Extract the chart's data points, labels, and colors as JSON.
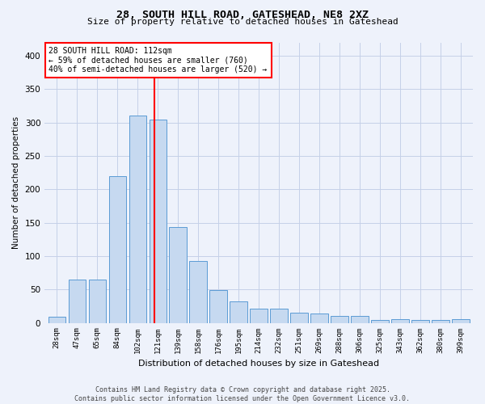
{
  "title_line1": "28, SOUTH HILL ROAD, GATESHEAD, NE8 2XZ",
  "title_line2": "Size of property relative to detached houses in Gateshead",
  "xlabel": "Distribution of detached houses by size in Gateshead",
  "ylabel": "Number of detached properties",
  "bar_values": [
    9,
    65,
    65,
    220,
    310,
    305,
    144,
    93,
    49,
    32,
    21,
    21,
    15,
    14,
    10,
    10,
    4,
    5,
    4,
    4,
    5
  ],
  "bin_labels": [
    "28sqm",
    "47sqm",
    "65sqm",
    "84sqm",
    "102sqm",
    "121sqm",
    "139sqm",
    "158sqm",
    "176sqm",
    "195sqm",
    "214sqm",
    "232sqm",
    "251sqm",
    "269sqm",
    "288sqm",
    "306sqm",
    "325sqm",
    "343sqm",
    "362sqm",
    "380sqm",
    "399sqm"
  ],
  "bar_color": "#c6d9f0",
  "bar_edge_color": "#5b9bd5",
  "ref_line_color": "red",
  "annotation_text": "28 SOUTH HILL ROAD: 112sqm\n← 59% of detached houses are smaller (760)\n40% of semi-detached houses are larger (520) →",
  "annotation_box_color": "white",
  "annotation_box_edge": "red",
  "footer_line1": "Contains HM Land Registry data © Crown copyright and database right 2025.",
  "footer_line2": "Contains public sector information licensed under the Open Government Licence v3.0.",
  "bg_color": "#eef2fb",
  "grid_color": "#c5d0e8",
  "ylim": [
    0,
    420
  ],
  "yticks": [
    0,
    50,
    100,
    150,
    200,
    250,
    300,
    350,
    400
  ]
}
